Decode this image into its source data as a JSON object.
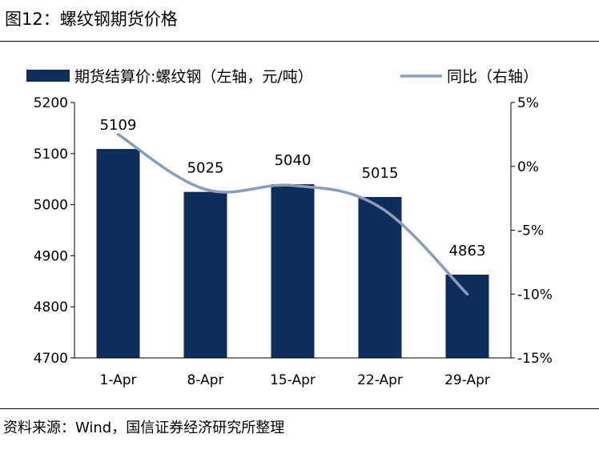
{
  "figure_title": "图12：螺纹钢期货价格",
  "source": "资料来源：Wind，国信证券经济研究所整理",
  "chart_data": {
    "type": "bar",
    "categories": [
      "1-Apr",
      "8-Apr",
      "15-Apr",
      "22-Apr",
      "29-Apr"
    ],
    "series": [
      {
        "name": "期货结算价:螺纹钢（左轴，元/吨）",
        "type": "bar",
        "axis": "left",
        "color": "#0d2d5b",
        "values": [
          5109,
          5025,
          5040,
          5015,
          4863
        ],
        "data_labels": [
          "5109",
          "5025",
          "5040",
          "5015",
          "4863"
        ]
      },
      {
        "name": "同比（右轴）",
        "type": "line",
        "axis": "right",
        "color": "#8b9db9",
        "values": [
          2.5,
          -1.8,
          -1.5,
          -3.2,
          -10.0
        ]
      }
    ],
    "y_left": {
      "range": [
        4700,
        5200
      ],
      "ticks": [
        "4700",
        "4800",
        "4900",
        "5000",
        "5100",
        "5200"
      ],
      "tick_values": [
        4700,
        4800,
        4900,
        5000,
        5100,
        5200
      ]
    },
    "y_right": {
      "range": [
        -15,
        5
      ],
      "ticks": [
        "-15%",
        "-10%",
        "-5%",
        "0%",
        "5%"
      ],
      "tick_values": [
        -15,
        -10,
        -5,
        0,
        5
      ]
    },
    "legend_position": "top",
    "grid": false
  }
}
